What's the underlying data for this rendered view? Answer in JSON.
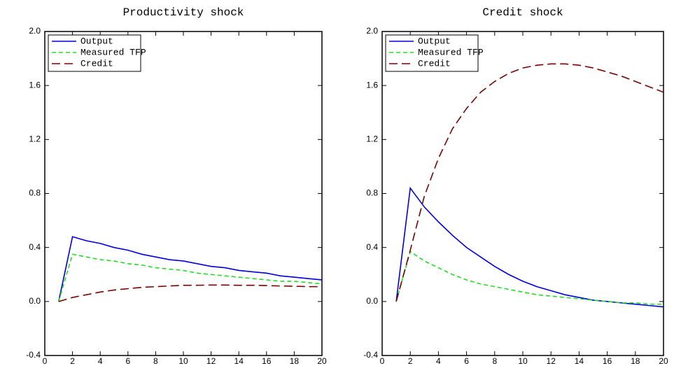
{
  "chart_data": [
    {
      "type": "line",
      "title": "Productivity shock",
      "x": [
        1,
        2,
        3,
        4,
        5,
        6,
        7,
        8,
        9,
        10,
        11,
        12,
        13,
        14,
        15,
        16,
        17,
        18,
        19,
        20
      ],
      "series": [
        {
          "name": "Output",
          "color": "#0000dd",
          "linestyle": "solid",
          "values": [
            0,
            0.48,
            0.45,
            0.43,
            0.4,
            0.38,
            0.35,
            0.33,
            0.31,
            0.3,
            0.28,
            0.26,
            0.25,
            0.23,
            0.22,
            0.21,
            0.19,
            0.18,
            0.17,
            0.16
          ]
        },
        {
          "name": "Measured TFP",
          "color": "#22dd22",
          "linestyle": "dashed",
          "values": [
            0,
            0.35,
            0.33,
            0.31,
            0.3,
            0.28,
            0.27,
            0.25,
            0.24,
            0.23,
            0.21,
            0.2,
            0.19,
            0.18,
            0.17,
            0.16,
            0.15,
            0.15,
            0.14,
            0.13
          ]
        },
        {
          "name": "Credit",
          "color": "#7a0000",
          "linestyle": "longdash",
          "values": [
            0,
            0.03,
            0.05,
            0.07,
            0.085,
            0.095,
            0.105,
            0.11,
            0.115,
            0.12,
            0.12,
            0.122,
            0.122,
            0.12,
            0.12,
            0.118,
            0.115,
            0.113,
            0.11,
            0.11
          ]
        }
      ],
      "xlim": [
        0,
        20
      ],
      "xticks": [
        0,
        2,
        4,
        6,
        8,
        10,
        12,
        14,
        16,
        18,
        20
      ],
      "ylim": [
        -0.4,
        2.0
      ],
      "yticks": [
        -0.4,
        {
          "value": 0,
          "label": "0.0"
        },
        0.4,
        0.8,
        1.2,
        1.6,
        {
          "value": 2,
          "label": "2.0"
        }
      ],
      "legend": "upper left"
    },
    {
      "type": "line",
      "title": "Credit shock",
      "x": [
        1,
        2,
        3,
        4,
        5,
        6,
        7,
        8,
        9,
        10,
        11,
        12,
        13,
        14,
        15,
        16,
        17,
        18,
        19,
        20
      ],
      "series": [
        {
          "name": "Output",
          "color": "#0000dd",
          "linestyle": "solid",
          "values": [
            0,
            0.84,
            0.7,
            0.59,
            0.49,
            0.4,
            0.33,
            0.26,
            0.2,
            0.15,
            0.11,
            0.08,
            0.05,
            0.03,
            0.01,
            0,
            -0.01,
            -0.02,
            -0.03,
            -0.04
          ]
        },
        {
          "name": "Measured TFP",
          "color": "#22dd22",
          "linestyle": "dashed",
          "values": [
            0,
            0.37,
            0.3,
            0.25,
            0.2,
            0.16,
            0.13,
            0.11,
            0.09,
            0.07,
            0.05,
            0.04,
            0.03,
            0.02,
            0.01,
            0,
            -0.01,
            -0.01,
            -0.02,
            -0.02
          ]
        },
        {
          "name": "Credit",
          "color": "#7a0000",
          "linestyle": "longdash",
          "values": [
            0,
            0.38,
            0.78,
            1.06,
            1.28,
            1.43,
            1.55,
            1.63,
            1.69,
            1.73,
            1.75,
            1.76,
            1.76,
            1.75,
            1.73,
            1.7,
            1.67,
            1.63,
            1.59,
            1.55
          ]
        }
      ],
      "xlim": [
        0,
        20
      ],
      "xticks": [
        0,
        2,
        4,
        6,
        8,
        10,
        12,
        14,
        16,
        18,
        20
      ],
      "ylim": [
        -0.4,
        2.0
      ],
      "yticks": [
        -0.4,
        {
          "value": 0,
          "label": "0.0"
        },
        0.4,
        0.8,
        1.2,
        1.6,
        {
          "value": 2,
          "label": "2.0"
        }
      ],
      "legend": "upper left"
    }
  ]
}
